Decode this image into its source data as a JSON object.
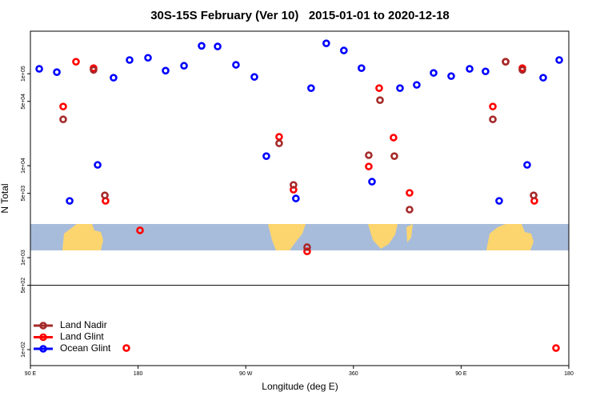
{
  "chart_data": {
    "type": "scatter",
    "title": "30S-15S February (Ver 10)   2015-01-01 to 2020-12-18",
    "xlabel": "Longitude (deg E)",
    "ylabel": "N Total",
    "log_y": true,
    "legend": "lower left",
    "xlim": [
      90,
      540
    ],
    "ylim": [
      67,
      290000
    ],
    "xticks": [
      {
        "value": 90,
        "label": "90 E"
      },
      180,
      {
        "value": 270,
        "label": "90 W"
      },
      360,
      {
        "value": 450,
        "label": "90 E"
      },
      {
        "value": 540,
        "label": "180"
      }
    ],
    "yticks": [
      {
        "value": 100000,
        "label": "1e+05"
      },
      {
        "value": 50000,
        "label": "5e+04"
      },
      {
        "value": 10000,
        "label": "1e+04"
      },
      {
        "value": 5000,
        "label": "5e+03"
      },
      {
        "value": 1000,
        "label": "1e+03"
      },
      {
        "value": 500,
        "label": "5e+02"
      },
      {
        "value": 100,
        "label": "1e+02"
      }
    ],
    "reference_line": 500,
    "series": [
      {
        "name": "Ocean Glint",
        "color": "#0000ff",
        "x": [
          97.4,
          112.1,
          122.8,
          146.2,
          159.5,
          172.9,
          188.3,
          203.0,
          218.4,
          233.1,
          246.5,
          261.8,
          277.2,
          287.2,
          311.9,
          324.6,
          337.3,
          352.0,
          366.7,
          375.5,
          398.9,
          412.9,
          427.0,
          441.7,
          457.1,
          470.4,
          481.8,
          505.2,
          518.6,
          532.0
        ],
        "values": [
          113000,
          104000,
          4140,
          10200,
          90500,
          141000,
          149000,
          108000,
          122000,
          201000,
          198000,
          125000,
          92300,
          12700,
          4400,
          69700,
          214000,
          179000,
          115000,
          6700,
          69700,
          75600,
          102000,
          94200,
          113000,
          106000,
          4140,
          10200,
          90500,
          141000
        ]
      },
      {
        "name": "Land Glint",
        "color": "#ff0000",
        "x": [
          128.1,
          117.4,
          142.8,
          152.8,
          181.6,
          297.9,
          309.9,
          321.3,
          381.5,
          372.8,
          393.5,
          406.9,
          487.2,
          476.5,
          501.2,
          511.2,
          170.2,
          529.3
        ],
        "values": [
          135000,
          44000,
          115000,
          4140,
          1980,
          20600,
          5480,
          1170,
          69700,
          9800,
          20200,
          5060,
          135000,
          44000,
          115000,
          4140,
          104,
          104
        ]
      },
      {
        "name": "Land Nadir",
        "color": "#a52a2a",
        "x": [
          117.4,
          142.8,
          152.2,
          297.9,
          309.9,
          321.3,
          382.2,
          372.8,
          394.2,
          406.9,
          487.2,
          476.5,
          501.2,
          510.6
        ],
        "values": [
          31900,
          110000,
          4760,
          17500,
          6180,
          1300,
          51600,
          13000,
          12700,
          3330,
          135000,
          31900,
          110000,
          4760
        ]
      }
    ]
  }
}
